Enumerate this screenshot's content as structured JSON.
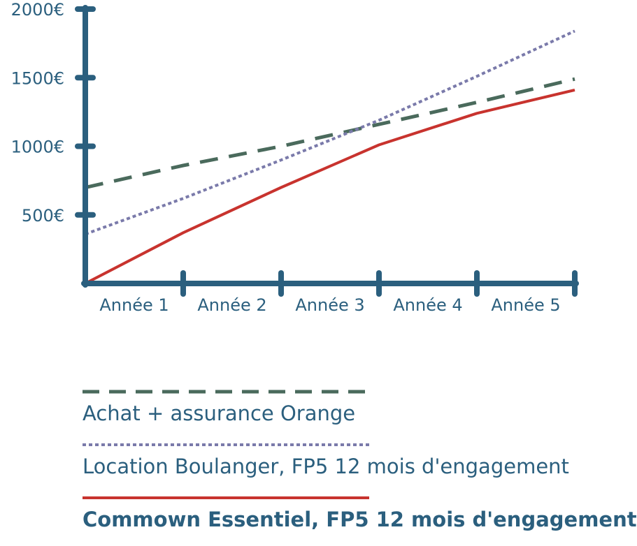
{
  "chart_data": {
    "type": "line",
    "categories": [
      "Année 1",
      "Année 2",
      "Année 3",
      "Année 4",
      "Année 5"
    ],
    "x": [
      0,
      1,
      2,
      3,
      4,
      5
    ],
    "y_ticks": [
      "500€",
      "1000€",
      "1500€",
      "2000€"
    ],
    "y_tick_values": [
      500,
      1000,
      1500,
      2000
    ],
    "ylim": [
      0,
      2000
    ],
    "xlim": [
      0,
      5
    ],
    "grid": false,
    "legend_position": "bottom",
    "series": [
      {
        "name": "Achat + assurance Orange",
        "style": "dashed",
        "color": "#4a6a5c",
        "values": [
          700,
          860,
          1000,
          1160,
          1320,
          1490
        ]
      },
      {
        "name": "Location Boulanger, FP5 12 mois d'engagement",
        "style": "dotted",
        "color": "#7a7aaa",
        "values": [
          360,
          620,
          900,
          1190,
          1510,
          1840
        ]
      },
      {
        "name": "Commown Essentiel, FP5 12 mois d'engagement",
        "style": "solid",
        "color": "#c8332e",
        "values": [
          0,
          370,
          700,
          1010,
          1240,
          1410
        ]
      }
    ]
  },
  "colors": {
    "axis": "#2b5f7e",
    "text": "#2b5f7e"
  }
}
